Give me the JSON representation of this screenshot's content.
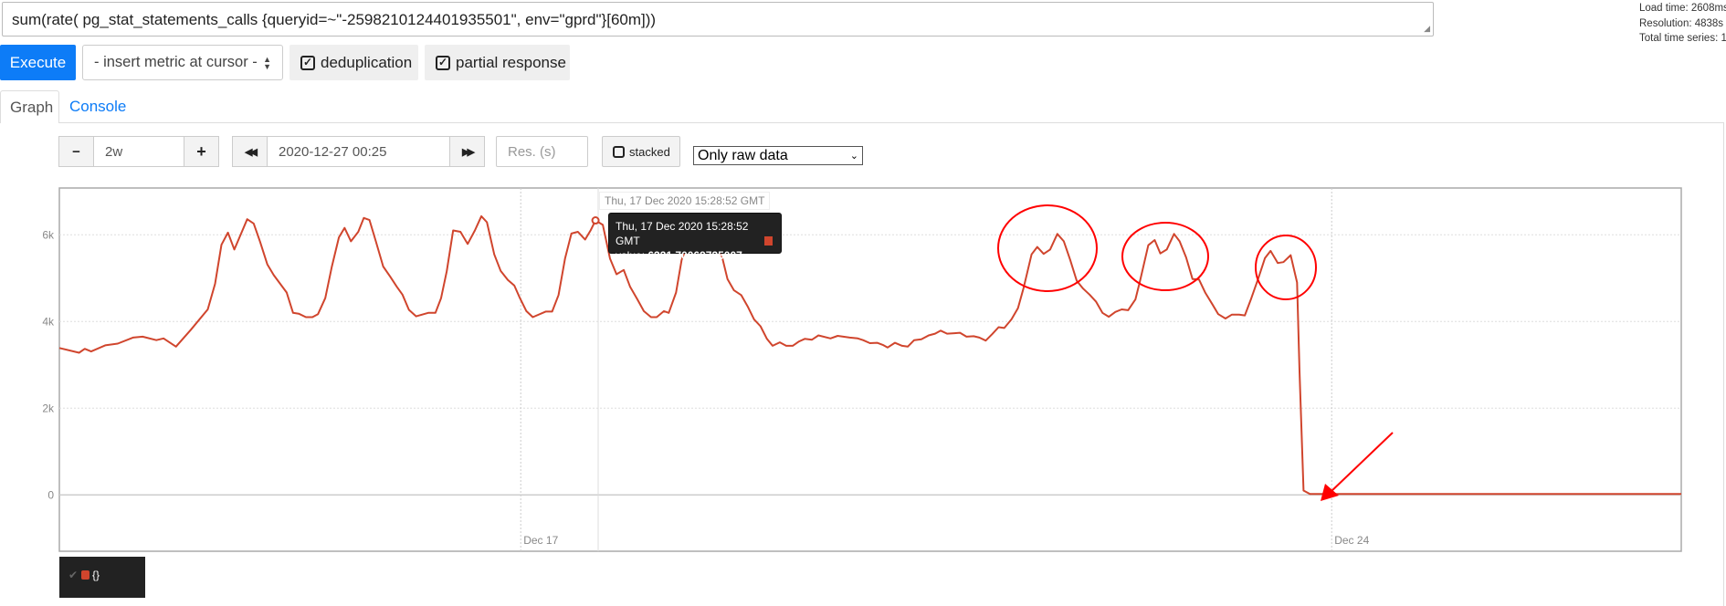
{
  "query": {
    "expression": "sum(rate( pg_stat_statements_calls {queryid=~\"-2598210124401935501\", env=\"gprd\"}[60m]))"
  },
  "stats": {
    "load_time": "Load time: 2608ms",
    "resolution": "Resolution: 4838s",
    "total_series": "Total time series: 1"
  },
  "toolbar": {
    "execute_label": "Execute",
    "insert_metric_label": "- insert metric at cursor -",
    "deduplication_label": "deduplication",
    "deduplication_checked": true,
    "partial_response_label": "partial response",
    "partial_response_checked": true
  },
  "tabs": [
    {
      "label": "Graph",
      "active": true
    },
    {
      "label": "Console",
      "active": false
    }
  ],
  "graph_controls": {
    "range_minus": "−",
    "range_value": "2w",
    "range_plus": "+",
    "back_icon": "fast-backward",
    "end_time": "2020-12-27 00:25",
    "forward_icon": "fast-forward",
    "resolution_placeholder": "Res. (s)",
    "stacked_label": "stacked",
    "stacked_checked": false,
    "mode_selected": "Only raw data"
  },
  "tooltip": {
    "header": "Thu, 17 Dec 2020 15:28:52 GMT",
    "time": "Thu, 17 Dec 2020 15:28:52 GMT",
    "value_label": "value:",
    "value": "6331.70069735007"
  },
  "legend": {
    "items": [
      {
        "name": "{}",
        "color": "#d0452d",
        "enabled": true
      }
    ]
  },
  "colors": {
    "series": "#d0452d",
    "annotation": "#ff0000",
    "accent": "#0d7cf7"
  },
  "chart_data": {
    "type": "line",
    "title": "",
    "xlabel": "",
    "ylabel": "",
    "xlim": [
      "2020-12-13 00:25",
      "2020-12-27 00:25"
    ],
    "ylim": [
      -1300,
      7080
    ],
    "y_ticks": [
      {
        "value": 0,
        "label": "0"
      },
      {
        "value": 2000,
        "label": "2k"
      },
      {
        "value": 4000,
        "label": "4k"
      },
      {
        "value": 6000,
        "label": "6k"
      }
    ],
    "x_ticks": [
      {
        "value": "2020-12-17 00:00",
        "label": "Dec 17"
      },
      {
        "value": "2020-12-24 00:00",
        "label": "Dec 24"
      }
    ],
    "grid": true,
    "annotations": [
      "red circles around peaks on Dec 21, Dec 22, Dec 23",
      "red arrow pointing to drop to ~0 on Dec 23"
    ],
    "series": [
      {
        "name": "{}",
        "color": "#d0452d",
        "points": [
          [
            "2020-12-13 00:25",
            3390
          ],
          [
            "2020-12-13 04:30",
            3280
          ],
          [
            "2020-12-13 05:40",
            3370
          ],
          [
            "2020-12-13 07:00",
            3310
          ],
          [
            "2020-12-13 09:55",
            3450
          ],
          [
            "2020-12-13 12:30",
            3490
          ],
          [
            "2020-12-13 15:40",
            3630
          ],
          [
            "2020-12-13 17:40",
            3650
          ],
          [
            "2020-12-13 20:30",
            3570
          ],
          [
            "2020-12-13 22:00",
            3610
          ],
          [
            "2020-12-14 00:35",
            3420
          ],
          [
            "2020-12-14 03:40",
            3810
          ],
          [
            "2020-12-14 07:10",
            4280
          ],
          [
            "2020-12-14 08:40",
            4870
          ],
          [
            "2020-12-14 10:00",
            5770
          ],
          [
            "2020-12-14 11:20",
            6050
          ],
          [
            "2020-12-14 12:40",
            5660
          ],
          [
            "2020-12-14 15:20",
            6360
          ],
          [
            "2020-12-14 16:40",
            6260
          ],
          [
            "2020-12-14 18:00",
            5840
          ],
          [
            "2020-12-14 19:30",
            5320
          ],
          [
            "2020-12-14 20:50",
            5070
          ],
          [
            "2020-12-14 23:30",
            4670
          ],
          [
            "2020-12-15 00:50",
            4200
          ],
          [
            "2020-12-15 02:00",
            4180
          ],
          [
            "2020-12-15 03:30",
            4100
          ],
          [
            "2020-12-15 04:50",
            4100
          ],
          [
            "2020-12-15 06:00",
            4170
          ],
          [
            "2020-12-15 07:30",
            4540
          ],
          [
            "2020-12-15 08:50",
            5250
          ],
          [
            "2020-12-15 10:20",
            5940
          ],
          [
            "2020-12-15 11:30",
            6160
          ],
          [
            "2020-12-15 12:50",
            5850
          ],
          [
            "2020-12-15 14:20",
            6070
          ],
          [
            "2020-12-15 15:30",
            6390
          ],
          [
            "2020-12-15 16:40",
            6340
          ],
          [
            "2020-12-15 18:00",
            5840
          ],
          [
            "2020-12-15 19:30",
            5270
          ],
          [
            "2020-12-15 21:00",
            5030
          ],
          [
            "2020-12-15 22:20",
            4800
          ],
          [
            "2020-12-15 23:30",
            4620
          ],
          [
            "2020-12-16 00:50",
            4270
          ],
          [
            "2020-12-16 02:20",
            4120
          ],
          [
            "2020-12-16 04:50",
            4200
          ],
          [
            "2020-12-16 06:20",
            4200
          ],
          [
            "2020-12-16 07:30",
            4540
          ],
          [
            "2020-12-16 08:40",
            5160
          ],
          [
            "2020-12-16 10:00",
            6100
          ],
          [
            "2020-12-16 11:30",
            6070
          ],
          [
            "2020-12-16 13:00",
            5790
          ],
          [
            "2020-12-16 14:30",
            6100
          ],
          [
            "2020-12-16 15:50",
            6430
          ],
          [
            "2020-12-16 17:00",
            6290
          ],
          [
            "2020-12-16 18:30",
            5550
          ],
          [
            "2020-12-16 19:50",
            5170
          ],
          [
            "2020-12-16 21:20",
            4960
          ],
          [
            "2020-12-16 22:40",
            4830
          ],
          [
            "2020-12-16 23:50",
            4540
          ],
          [
            "2020-12-17 01:10",
            4240
          ],
          [
            "2020-12-17 02:30",
            4100
          ],
          [
            "2020-12-17 05:10",
            4230
          ],
          [
            "2020-12-17 06:30",
            4230
          ],
          [
            "2020-12-17 07:50",
            4610
          ],
          [
            "2020-12-17 09:10",
            5450
          ],
          [
            "2020-12-17 10:30",
            6030
          ],
          [
            "2020-12-17 11:50",
            6070
          ],
          [
            "2020-12-17 13:20",
            5890
          ],
          [
            "2020-12-17 14:30",
            6110
          ],
          [
            "2020-12-17 15:29",
            6331.7
          ],
          [
            "2020-12-17 17:00",
            6230
          ],
          [
            "2020-12-17 18:30",
            5450
          ],
          [
            "2020-12-17 19:50",
            5090
          ],
          [
            "2020-12-17 21:20",
            5190
          ],
          [
            "2020-12-17 22:40",
            4800
          ],
          [
            "2020-12-18 00:10",
            4510
          ],
          [
            "2020-12-18 01:30",
            4240
          ],
          [
            "2020-12-18 03:00",
            4100
          ],
          [
            "2020-12-18 04:10",
            4100
          ],
          [
            "2020-12-18 05:40",
            4240
          ],
          [
            "2020-12-18 06:40",
            4200
          ],
          [
            "2020-12-18 08:10",
            4670
          ],
          [
            "2020-12-18 09:20",
            5420
          ],
          [
            "2020-12-18 10:40",
            5810
          ],
          [
            "2020-12-18 12:10",
            5810
          ],
          [
            "2020-12-18 13:20",
            5630
          ],
          [
            "2020-12-18 14:40",
            5790
          ],
          [
            "2020-12-18 16:10",
            5830
          ],
          [
            "2020-12-18 17:40",
            5510
          ],
          [
            "2020-12-18 18:50",
            4980
          ],
          [
            "2020-12-18 20:10",
            4720
          ],
          [
            "2020-12-18 21:40",
            4610
          ],
          [
            "2020-12-18 23:00",
            4350
          ],
          [
            "2020-12-19 00:20",
            4050
          ],
          [
            "2020-12-19 01:40",
            3890
          ],
          [
            "2020-12-19 03:00",
            3600
          ],
          [
            "2020-12-19 04:10",
            3440
          ],
          [
            "2020-12-19 05:40",
            3520
          ],
          [
            "2020-12-19 07:00",
            3440
          ],
          [
            "2020-12-19 08:20",
            3440
          ],
          [
            "2020-12-19 09:40",
            3540
          ],
          [
            "2020-12-19 10:50",
            3600
          ],
          [
            "2020-12-19 12:20",
            3580
          ],
          [
            "2020-12-19 13:40",
            3680
          ],
          [
            "2020-12-19 16:10",
            3610
          ],
          [
            "2020-12-19 17:40",
            3670
          ],
          [
            "2020-12-19 20:10",
            3630
          ],
          [
            "2020-12-19 21:50",
            3610
          ],
          [
            "2020-12-19 22:55",
            3570
          ],
          [
            "2020-12-20 00:20",
            3500
          ],
          [
            "2020-12-20 01:50",
            3510
          ],
          [
            "2020-12-20 03:00",
            3460
          ],
          [
            "2020-12-20 04:00",
            3400
          ],
          [
            "2020-12-20 05:30",
            3510
          ],
          [
            "2020-12-20 07:00",
            3440
          ],
          [
            "2020-12-20 08:10",
            3420
          ],
          [
            "2020-12-20 09:30",
            3570
          ],
          [
            "2020-12-20 11:00",
            3590
          ],
          [
            "2020-12-20 12:30",
            3680
          ],
          [
            "2020-12-20 13:50",
            3720
          ],
          [
            "2020-12-20 15:00",
            3790
          ],
          [
            "2020-12-20 16:20",
            3720
          ],
          [
            "2020-12-20 17:50",
            3730
          ],
          [
            "2020-12-20 19:00",
            3740
          ],
          [
            "2020-12-20 20:20",
            3650
          ],
          [
            "2020-12-20 21:50",
            3660
          ],
          [
            "2020-12-20 23:00",
            3630
          ],
          [
            "2020-12-21 00:20",
            3560
          ],
          [
            "2020-12-21 01:40",
            3710
          ],
          [
            "2020-12-21 03:00",
            3870
          ],
          [
            "2020-12-21 04:10",
            3850
          ],
          [
            "2020-12-21 05:40",
            4050
          ],
          [
            "2020-12-21 07:00",
            4310
          ],
          [
            "2020-12-21 08:10",
            4770
          ],
          [
            "2020-12-21 09:50",
            5550
          ],
          [
            "2020-12-21 11:00",
            5720
          ],
          [
            "2020-12-21 12:20",
            5560
          ],
          [
            "2020-12-21 13:40",
            5660
          ],
          [
            "2020-12-21 15:10",
            6020
          ],
          [
            "2020-12-21 16:30",
            5850
          ],
          [
            "2020-12-21 17:50",
            5420
          ],
          [
            "2020-12-21 19:10",
            4940
          ],
          [
            "2020-12-21 20:30",
            4760
          ],
          [
            "2020-12-21 21:50",
            4620
          ],
          [
            "2020-12-21 23:10",
            4460
          ],
          [
            "2020-12-22 00:30",
            4200
          ],
          [
            "2020-12-22 01:50",
            4110
          ],
          [
            "2020-12-22 03:10",
            4220
          ],
          [
            "2020-12-22 04:30",
            4280
          ],
          [
            "2020-12-22 05:50",
            4260
          ],
          [
            "2020-12-22 07:20",
            4510
          ],
          [
            "2020-12-22 08:20",
            4960
          ],
          [
            "2020-12-22 10:00",
            5760
          ],
          [
            "2020-12-22 11:20",
            5880
          ],
          [
            "2020-12-22 12:30",
            5570
          ],
          [
            "2020-12-22 13:50",
            5660
          ],
          [
            "2020-12-22 15:20",
            6020
          ],
          [
            "2020-12-22 16:30",
            5850
          ],
          [
            "2020-12-22 17:50",
            5480
          ],
          [
            "2020-12-22 19:10",
            4980
          ],
          [
            "2020-12-22 20:30",
            4970
          ],
          [
            "2020-12-22 21:50",
            4660
          ],
          [
            "2020-12-22 23:20",
            4390
          ],
          [
            "2020-12-23 00:30",
            4170
          ],
          [
            "2020-12-23 02:00",
            4070
          ],
          [
            "2020-12-23 03:20",
            4160
          ],
          [
            "2020-12-23 04:50",
            4160
          ],
          [
            "2020-12-23 06:00",
            4140
          ],
          [
            "2020-12-23 07:20",
            4530
          ],
          [
            "2020-12-23 08:50",
            5010
          ],
          [
            "2020-12-23 10:10",
            5460
          ],
          [
            "2020-12-23 11:20",
            5630
          ],
          [
            "2020-12-23 12:50",
            5350
          ],
          [
            "2020-12-23 14:00",
            5370
          ],
          [
            "2020-12-23 15:30",
            5530
          ],
          [
            "2020-12-23 16:50",
            4900
          ],
          [
            "2020-12-23 17:20",
            2850
          ],
          [
            "2020-12-23 18:10",
            100
          ],
          [
            "2020-12-23 19:30",
            20
          ],
          [
            "2020-12-27 00:25",
            20
          ]
        ]
      }
    ]
  }
}
